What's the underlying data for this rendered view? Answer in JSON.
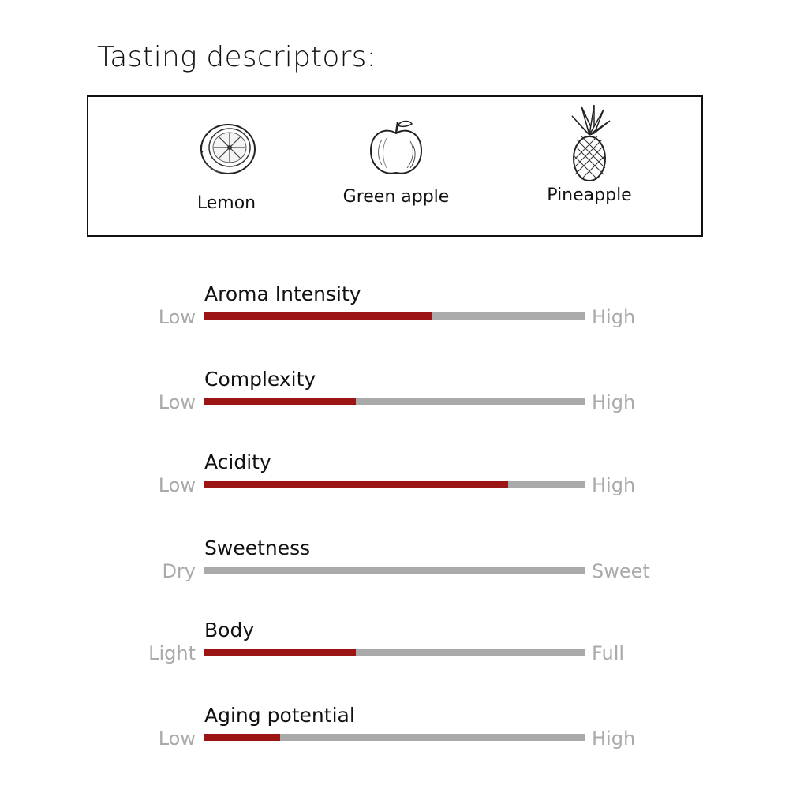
{
  "title": "Tasting descriptors:",
  "descriptors": [
    {
      "label": "Lemon",
      "icon": "lemon-icon"
    },
    {
      "label": "Green apple",
      "icon": "apple-icon"
    },
    {
      "label": "Pineapple",
      "icon": "pineapple-icon"
    }
  ],
  "colors": {
    "fill": "#9b1515",
    "track": "#aaaaaa"
  },
  "scales": [
    {
      "label": "Aroma Intensity",
      "low": "Low",
      "high": "High",
      "value": 0.6
    },
    {
      "label": "Complexity",
      "low": "Low",
      "high": "High",
      "value": 0.4
    },
    {
      "label": "Acidity",
      "low": "Low",
      "high": "High",
      "value": 0.8
    },
    {
      "label": "Sweetness",
      "low": "Dry",
      "high": "Sweet",
      "value": 0.0
    },
    {
      "label": "Body",
      "low": "Light",
      "high": "Full",
      "value": 0.4
    },
    {
      "label": "Aging potential",
      "low": "Low",
      "high": "High",
      "value": 0.2
    }
  ]
}
